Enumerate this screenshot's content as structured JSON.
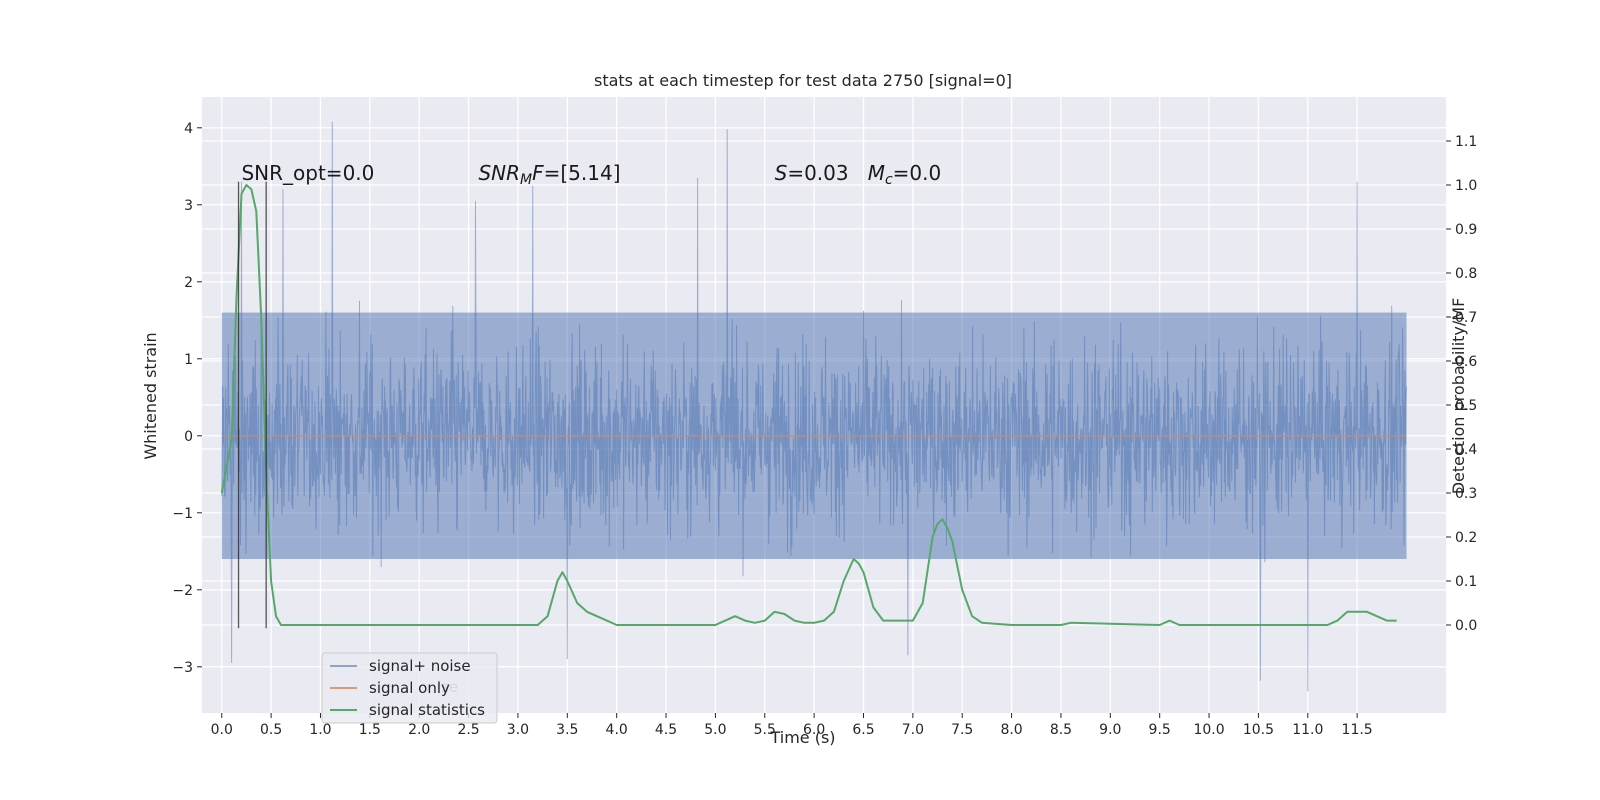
{
  "chart_data": {
    "type": "line",
    "title": "stats at each timestep for test data 2750 [signal=0]",
    "xlabel": "Time (s)",
    "ylabel": "Whitened strain",
    "y2label": "Detection probability/MF",
    "xlim": [
      -0.2,
      12.4
    ],
    "ylim": [
      -3.6,
      4.4
    ],
    "y2lim": [
      -0.2,
      1.2
    ],
    "x_ticks": [
      "0.0",
      "0.5",
      "1.0",
      "1.5",
      "2.0",
      "2.5",
      "3.0",
      "3.5",
      "4.0",
      "4.5",
      "5.0",
      "5.5",
      "6.0",
      "6.5",
      "7.0",
      "7.5",
      "8.0",
      "8.5",
      "9.0",
      "9.5",
      "10.0",
      "10.5",
      "11.0",
      "11.5"
    ],
    "y_ticks": [
      "4",
      "3",
      "2",
      "1",
      "0",
      "−1",
      "−2",
      "−3"
    ],
    "y_tick_values": [
      4,
      3,
      2,
      1,
      0,
      -1,
      -2,
      -3
    ],
    "y2_ticks": [
      "1.1",
      "1.0",
      "0.9",
      "0.8",
      "0.7",
      "0.6",
      "0.5",
      "0.4",
      "0.3",
      "0.2",
      "0.1",
      "0.0"
    ],
    "y2_tick_values": [
      1.1,
      1.0,
      0.9,
      0.8,
      0.7,
      0.6,
      0.5,
      0.4,
      0.3,
      0.2,
      0.1,
      0.0
    ],
    "grid": true,
    "legend_position": "lower-left",
    "series": [
      {
        "name": "signal+ noise",
        "color": "#4c72b0",
        "style": "dense noise trace",
        "x_range": [
          0.0,
          12.0
        ],
        "y_band": [
          -1.6,
          1.6
        ],
        "peaks": [
          [
            1.12,
            4.08
          ],
          [
            5.12,
            3.98
          ],
          [
            11.5,
            3.3
          ],
          [
            0.2,
            3.3
          ],
          [
            0.62,
            3.2
          ],
          [
            2.57,
            3.05
          ],
          [
            3.15,
            3.25
          ],
          [
            4.82,
            3.35
          ],
          [
            11.0,
            -3.32
          ],
          [
            10.52,
            -3.18
          ],
          [
            0.1,
            -2.95
          ],
          [
            3.5,
            -2.9
          ],
          [
            6.95,
            -2.85
          ]
        ]
      },
      {
        "name": "signal only",
        "color": "#dd8452",
        "x": [
          0.0,
          12.0
        ],
        "y": [
          0.0,
          0.0
        ]
      },
      {
        "name": "signal statistics",
        "color": "#55a868",
        "axis": "right",
        "x": [
          0.0,
          0.1,
          0.15,
          0.2,
          0.25,
          0.3,
          0.35,
          0.4,
          0.45,
          0.5,
          0.55,
          0.6,
          0.65,
          0.7,
          3.0,
          3.2,
          3.3,
          3.4,
          3.45,
          3.5,
          3.6,
          3.7,
          3.8,
          3.9,
          4.0,
          5.0,
          5.1,
          5.2,
          5.3,
          5.4,
          5.5,
          5.6,
          5.7,
          5.8,
          5.9,
          6.0,
          6.1,
          6.2,
          6.3,
          6.4,
          6.45,
          6.5,
          6.6,
          6.7,
          6.8,
          7.0,
          7.1,
          7.2,
          7.25,
          7.3,
          7.35,
          7.4,
          7.5,
          7.6,
          7.7,
          8.0,
          8.5,
          8.6,
          9.5,
          9.6,
          9.7,
          11.2,
          11.3,
          11.4,
          11.5,
          11.6,
          11.7,
          11.8,
          11.9
        ],
        "y": [
          0.3,
          0.42,
          0.75,
          0.98,
          1.0,
          0.99,
          0.94,
          0.7,
          0.35,
          0.1,
          0.02,
          0.0,
          0.0,
          0.0,
          0.0,
          0.0,
          0.02,
          0.1,
          0.12,
          0.1,
          0.05,
          0.03,
          0.02,
          0.01,
          0.0,
          0.0,
          0.01,
          0.02,
          0.01,
          0.005,
          0.01,
          0.03,
          0.025,
          0.01,
          0.005,
          0.005,
          0.01,
          0.03,
          0.1,
          0.15,
          0.14,
          0.12,
          0.04,
          0.01,
          0.01,
          0.01,
          0.05,
          0.2,
          0.23,
          0.24,
          0.22,
          0.19,
          0.08,
          0.02,
          0.005,
          0.0,
          0.0,
          0.005,
          0.0,
          0.01,
          0.0,
          0.0,
          0.01,
          0.03,
          0.03,
          0.03,
          0.02,
          0.01,
          0.01
        ]
      }
    ],
    "vlines": [
      0.17,
      0.45
    ],
    "vline_range": [
      -2.5,
      3.3
    ],
    "annotations": [
      {
        "text": "SNR_opt=0.0",
        "x": 0.2,
        "y": 3.32
      },
      {
        "text": "SNR_MF=[5.14]",
        "x": 2.6,
        "y": 3.32
      },
      {
        "text": "S=0.03   M_c=0.0",
        "x": 5.6,
        "y": 3.32
      }
    ],
    "legend": [
      "signal+ noise",
      "signal only",
      "signal statistics"
    ],
    "legend_ghost_text": "ise",
    "colors": {
      "background": "#eaeaf2",
      "grid": "#ffffff",
      "noise": "#4c72b0",
      "signal": "#dd8452",
      "stats": "#55a868",
      "vline": "#222222"
    }
  }
}
